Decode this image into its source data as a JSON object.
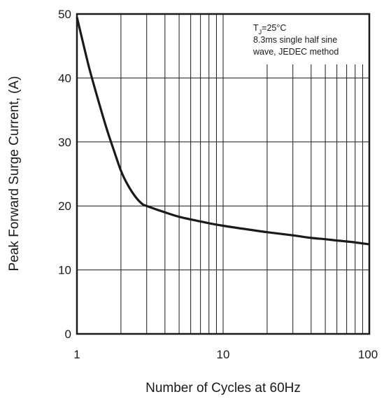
{
  "chart_data": {
    "type": "line",
    "title": "",
    "xlabel": "Number of Cycles at 60Hz",
    "ylabel": "Peak Forward Surge Current, (A)",
    "xscale": "log",
    "xlim": [
      1,
      100
    ],
    "ylim": [
      0,
      50
    ],
    "x_ticks": [
      "1",
      "10",
      "100"
    ],
    "y_ticks": [
      "0",
      "10",
      "20",
      "30",
      "40",
      "50"
    ],
    "grid": true,
    "annotation": [
      "TJ=25°C",
      "8.3ms single half sine",
      "wave, JEDEC method"
    ],
    "series": [
      {
        "x": [
          1,
          1.2,
          1.4,
          1.6,
          1.8,
          2,
          2.2,
          2.5,
          2.8,
          3,
          4,
          5,
          6,
          8,
          10,
          15,
          20,
          30,
          40,
          50,
          60,
          80,
          100
        ],
        "y": [
          49.5,
          42,
          36.5,
          32,
          28.5,
          25.5,
          23.5,
          21.5,
          20.3,
          20,
          19,
          18.3,
          17.9,
          17.3,
          16.9,
          16.3,
          15.9,
          15.4,
          15.0,
          14.8,
          14.6,
          14.3,
          14.0
        ]
      }
    ]
  },
  "colors": {
    "curve": "#1a1a1a",
    "grid": "#1a1a1a",
    "frame": "#1a1a1a"
  }
}
